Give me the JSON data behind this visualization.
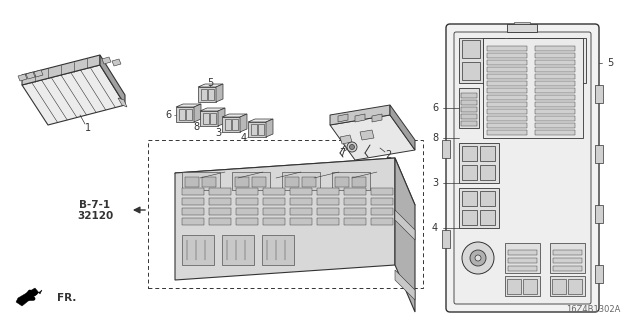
{
  "bg_color": "#ffffff",
  "line_color": "#333333",
  "diagram_code": "16Z4B1302A",
  "direction_label": "FR.",
  "fig_width": 6.4,
  "fig_height": 3.2,
  "dpi": 100,
  "label_b71": "B-7-1",
  "label_32120": "32120",
  "gray_light": "#e0e0e0",
  "gray_mid": "#c8c8c8",
  "gray_dark": "#a0a0a0",
  "gray_fill": "#d4d4d4"
}
